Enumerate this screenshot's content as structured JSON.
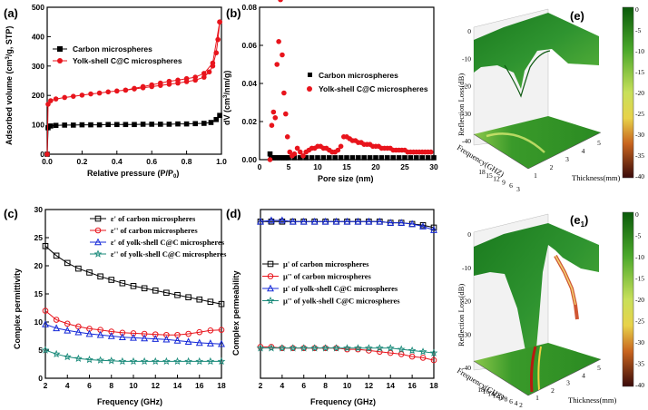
{
  "chart_data": [
    {
      "panel": "(a)",
      "type": "line",
      "xlabel": "Relative pressure (P/P",
      "xlabel_sub": "0",
      "xlabel_end": ")",
      "ylabel": "Adsorbed volume (cm",
      "ylabel_sup": "3",
      "ylabel_end": "/g, STP)",
      "xlim": [
        0,
        1.0
      ],
      "ylim": [
        0,
        500
      ],
      "xticks": [
        "0.0",
        "0.2",
        "0.4",
        "0.6",
        "0.8",
        "1.0"
      ],
      "yticks": [
        "0",
        "100",
        "200",
        "300",
        "400",
        "500"
      ],
      "legend_position": "top-left",
      "series": [
        {
          "name": "Carbon microspheres",
          "color": "#000000",
          "marker": "square",
          "x": [
            0.0,
            0.005,
            0.02,
            0.05,
            0.1,
            0.15,
            0.2,
            0.25,
            0.3,
            0.35,
            0.4,
            0.45,
            0.5,
            0.55,
            0.6,
            0.65,
            0.7,
            0.75,
            0.8,
            0.85,
            0.9,
            0.94,
            0.97,
            0.99
          ],
          "y": [
            0,
            90,
            96,
            98,
            99,
            99,
            100,
            100,
            100,
            101,
            101,
            101,
            101,
            102,
            102,
            102,
            102,
            103,
            103,
            104,
            105,
            108,
            118,
            132
          ]
        },
        {
          "name": "Yolk-shell C@C microspheres",
          "color": "#e8141c",
          "marker": "circle",
          "x": [
            0.0,
            0.005,
            0.02,
            0.05,
            0.1,
            0.15,
            0.2,
            0.25,
            0.3,
            0.35,
            0.4,
            0.45,
            0.5,
            0.55,
            0.6,
            0.65,
            0.7,
            0.75,
            0.8,
            0.85,
            0.9,
            0.93,
            0.95,
            0.97,
            0.98,
            0.99
          ],
          "y": [
            0,
            170,
            182,
            188,
            193,
            197,
            201,
            205,
            208,
            212,
            215,
            218,
            222,
            226,
            230,
            234,
            238,
            242,
            247,
            252,
            262,
            280,
            300,
            345,
            390,
            450
          ],
          "x_desorption": [
            0.99,
            0.95,
            0.9,
            0.85,
            0.8,
            0.75,
            0.7,
            0.65,
            0.6,
            0.55,
            0.5,
            0.45
          ],
          "y_desorption": [
            450,
            310,
            275,
            262,
            257,
            252,
            248,
            242,
            236,
            230,
            224,
            218
          ]
        }
      ]
    },
    {
      "panel": "(b)",
      "type": "scatter",
      "xlabel": "Pore size (nm)",
      "ylabel": "dV (cm",
      "ylabel_sup": "3",
      "ylabel_end": "/nm/g)",
      "xlim": [
        0,
        30
      ],
      "ylim": [
        0,
        0.08
      ],
      "xticks": [
        "0",
        "5",
        "10",
        "15",
        "20",
        "25",
        "30"
      ],
      "yticks": [
        "0.00",
        "0.02",
        "0.04",
        "0.06",
        "0.08"
      ],
      "legend_position": "right",
      "series": [
        {
          "name": "Carbon microspheres",
          "color": "#000000",
          "marker": "square",
          "x": [
            1.8,
            2.0,
            2.3,
            2.6,
            3.0,
            3.4,
            3.8,
            4.2,
            4.6,
            5.0,
            6,
            7,
            8,
            9,
            10,
            11,
            12,
            13,
            14,
            15,
            16,
            17,
            18,
            19,
            20,
            21,
            22,
            23,
            24,
            25,
            26,
            27,
            28,
            29,
            30
          ],
          "y": [
            0.003,
            0.001,
            0.001,
            0.001,
            0.001,
            0.001,
            0.001,
            0.001,
            0.001,
            0.001,
            0.001,
            0.001,
            0.001,
            0.001,
            0.001,
            0.001,
            0.001,
            0.001,
            0.001,
            0.001,
            0.001,
            0.001,
            0.001,
            0.001,
            0.001,
            0.001,
            0.001,
            0.001,
            0.001,
            0.001,
            0.001,
            0.001,
            0.001,
            0.001,
            0.001
          ]
        },
        {
          "name": "Yolk-shell C@C microspheres",
          "color": "#e8141c",
          "marker": "circle",
          "x": [
            1.8,
            2.1,
            2.4,
            2.7,
            3.0,
            3.3,
            3.6,
            3.9,
            4.2,
            4.5,
            4.8,
            5.2,
            5.6,
            6.0,
            6.5,
            7.0,
            7.5,
            8.0,
            8.5,
            9.0,
            9.5,
            10.0,
            10.5,
            11.0,
            11.5,
            12.0,
            12.5,
            13.0,
            13.5,
            14.0,
            14.5,
            15.0,
            15.5,
            16.0,
            16.5,
            17.0,
            17.5,
            18.0,
            18.5,
            19.0,
            19.5,
            20.0,
            20.5,
            21.0,
            21.5,
            22.0,
            22.5,
            23.0,
            23.5,
            24.0,
            24.5,
            25.0,
            25.5,
            26.0,
            26.5,
            27.0,
            27.5,
            28.0,
            28.5,
            29.0,
            29.5
          ],
          "y": [
            0.0,
            0.018,
            0.025,
            0.022,
            0.05,
            0.062,
            0.084,
            0.055,
            0.035,
            0.024,
            0.012,
            0.004,
            0.002,
            0.003,
            0.006,
            0.004,
            0.002,
            0.004,
            0.005,
            0.006,
            0.006,
            0.007,
            0.007,
            0.006,
            0.006,
            0.005,
            0.004,
            0.004,
            0.005,
            0.007,
            0.012,
            0.012,
            0.011,
            0.01,
            0.01,
            0.009,
            0.009,
            0.008,
            0.008,
            0.008,
            0.007,
            0.007,
            0.007,
            0.006,
            0.006,
            0.006,
            0.006,
            0.005,
            0.005,
            0.005,
            0.005,
            0.005,
            0.004,
            0.004,
            0.004,
            0.004,
            0.004,
            0.004,
            0.004,
            0.004,
            0.004
          ]
        }
      ]
    },
    {
      "panel": "(c)",
      "type": "line",
      "xlabel": "Frequency (GHz)",
      "ylabel": "Complex permittivity",
      "xlim": [
        2,
        18
      ],
      "ylim": [
        0,
        30
      ],
      "xticks": [
        "2",
        "4",
        "6",
        "8",
        "10",
        "12",
        "14",
        "16",
        "18"
      ],
      "yticks": [
        "0",
        "5",
        "10",
        "15",
        "20",
        "25",
        "30"
      ],
      "legend_position": "top",
      "series": [
        {
          "name": "ε' of carbon microspheres",
          "color": "#000000",
          "marker": "open-square",
          "x": [
            2,
            3,
            4,
            5,
            6,
            7,
            8,
            9,
            10,
            11,
            12,
            13,
            14,
            15,
            16,
            17,
            18
          ],
          "y": [
            23.5,
            21.8,
            20.5,
            19.5,
            18.8,
            18.1,
            17.5,
            16.9,
            16.4,
            16.0,
            15.6,
            15.2,
            14.8,
            14.4,
            14.0,
            13.6,
            13.2
          ]
        },
        {
          "name": "ε'' of carbon microspheres",
          "color": "#e8141c",
          "marker": "open-circle",
          "x": [
            2,
            3,
            4,
            5,
            6,
            7,
            8,
            9,
            10,
            11,
            12,
            13,
            14,
            15,
            16,
            17,
            18
          ],
          "y": [
            12.0,
            10.4,
            9.7,
            9.2,
            8.8,
            8.6,
            8.3,
            8.1,
            8.0,
            7.9,
            7.8,
            7.7,
            7.7,
            7.9,
            8.2,
            8.5,
            8.6
          ]
        },
        {
          "name": "ε' of yolk-shell C@C microspheres",
          "color": "#1428d8",
          "marker": "open-triangle",
          "x": [
            2,
            3,
            4,
            5,
            6,
            7,
            8,
            9,
            10,
            11,
            12,
            13,
            14,
            15,
            16,
            17,
            18
          ],
          "y": [
            9.6,
            8.9,
            8.5,
            8.2,
            7.9,
            7.7,
            7.5,
            7.3,
            7.2,
            7.1,
            7.0,
            6.9,
            6.7,
            6.5,
            6.3,
            6.2,
            6.1
          ]
        },
        {
          "name": "ε'' of yolk-shell C@C microspheres",
          "color": "#1a8a7a",
          "marker": "open-star",
          "x": [
            2,
            3,
            4,
            5,
            6,
            7,
            8,
            9,
            10,
            11,
            12,
            13,
            14,
            15,
            16,
            17,
            18
          ],
          "y": [
            5.0,
            4.3,
            3.8,
            3.5,
            3.3,
            3.2,
            3.1,
            3.0,
            3.0,
            3.0,
            3.0,
            3.0,
            3.0,
            3.0,
            3.0,
            3.0,
            3.0
          ]
        }
      ]
    },
    {
      "panel": "(d)",
      "type": "line",
      "xlabel": "Frequency (GHz)",
      "ylabel": "Complex permeability",
      "xlim": [
        2,
        18
      ],
      "ylim": [
        -0.25,
        1.15
      ],
      "xticks": [
        "2",
        "4",
        "6",
        "8",
        "10",
        "12",
        "14",
        "16",
        "18"
      ],
      "yticks": [],
      "legend_position": "center",
      "series": [
        {
          "name": "μ' of carbon microspheres",
          "color": "#000000",
          "marker": "open-square",
          "x": [
            2,
            3,
            4,
            5,
            6,
            7,
            8,
            9,
            10,
            11,
            12,
            13,
            14,
            15,
            16,
            17,
            18
          ],
          "y": [
            1.05,
            1.05,
            1.05,
            1.05,
            1.05,
            1.05,
            1.05,
            1.05,
            1.05,
            1.05,
            1.05,
            1.05,
            1.04,
            1.04,
            1.03,
            1.02,
            1.0
          ]
        },
        {
          "name": "μ'' of carbon microspheres",
          "color": "#e8141c",
          "marker": "open-circle",
          "x": [
            2,
            3,
            4,
            5,
            6,
            7,
            8,
            9,
            10,
            11,
            12,
            13,
            14,
            15,
            16,
            17,
            18
          ],
          "y": [
            0.01,
            0.01,
            0.0,
            0.0,
            0.0,
            0.0,
            0.0,
            0.0,
            -0.01,
            -0.01,
            -0.02,
            -0.03,
            -0.04,
            -0.05,
            -0.07,
            -0.08,
            -0.1
          ]
        },
        {
          "name": "μ' of yolk-shell C@C microspheres",
          "color": "#1428d8",
          "marker": "open-triangle",
          "x": [
            2,
            3,
            4,
            5,
            6,
            7,
            8,
            9,
            10,
            11,
            12,
            13,
            14,
            15,
            16,
            17,
            18
          ],
          "y": [
            1.05,
            1.06,
            1.06,
            1.05,
            1.05,
            1.05,
            1.05,
            1.05,
            1.05,
            1.05,
            1.05,
            1.05,
            1.04,
            1.04,
            1.03,
            1.01,
            0.98
          ]
        },
        {
          "name": "μ'' of yolk-shell C@C microspheres",
          "color": "#1a8a7a",
          "marker": "open-star",
          "x": [
            2,
            3,
            4,
            5,
            6,
            7,
            8,
            9,
            10,
            11,
            12,
            13,
            14,
            15,
            16,
            17,
            18
          ],
          "y": [
            0.0,
            0.0,
            0.0,
            0.0,
            0.0,
            0.0,
            0.0,
            0.0,
            0.0,
            0.0,
            0.0,
            0.0,
            0.0,
            -0.01,
            -0.02,
            -0.03,
            -0.04
          ]
        }
      ]
    },
    {
      "panel": "(e)",
      "type": "surface",
      "zlabel": "Reflection Loss(dB)",
      "xlabel": "Thickness(mm)",
      "ylabel": "Frequency(GHZ)",
      "zticks": [
        "0",
        "-10",
        "-20",
        "-30",
        "-40"
      ],
      "thickness_ticks": [
        "1",
        "2",
        "3",
        "4",
        "5"
      ],
      "frequency_ticks": [
        "18",
        "15",
        "12",
        "9",
        "6",
        "3"
      ],
      "colorbar_ticks": [
        "0",
        "-5",
        "-10",
        "-15",
        "-20",
        "-25",
        "-30",
        "-35",
        "-40"
      ],
      "colorbar_range": [
        -40,
        0
      ]
    },
    {
      "panel": "(e",
      "panel_sub": "1",
      "panel_end": ")",
      "type": "surface",
      "zlabel": "Reflection Loss(dB)",
      "xlabel": "Thickness(mm)",
      "ylabel": "Frequency(GHZ)",
      "zticks": [
        "0",
        "-10",
        "-20",
        "-30",
        "-40"
      ],
      "thickness_ticks": [
        "1",
        "2",
        "3",
        "4",
        "5"
      ],
      "frequency_ticks": [
        "18",
        "16",
        "14",
        "12",
        "10",
        "8",
        "6",
        "4",
        "2"
      ],
      "colorbar_ticks": [
        "0",
        "-5",
        "-10",
        "-15",
        "-20",
        "-25",
        "-30",
        "-35",
        "-40"
      ],
      "colorbar_range": [
        -40,
        0
      ]
    }
  ]
}
